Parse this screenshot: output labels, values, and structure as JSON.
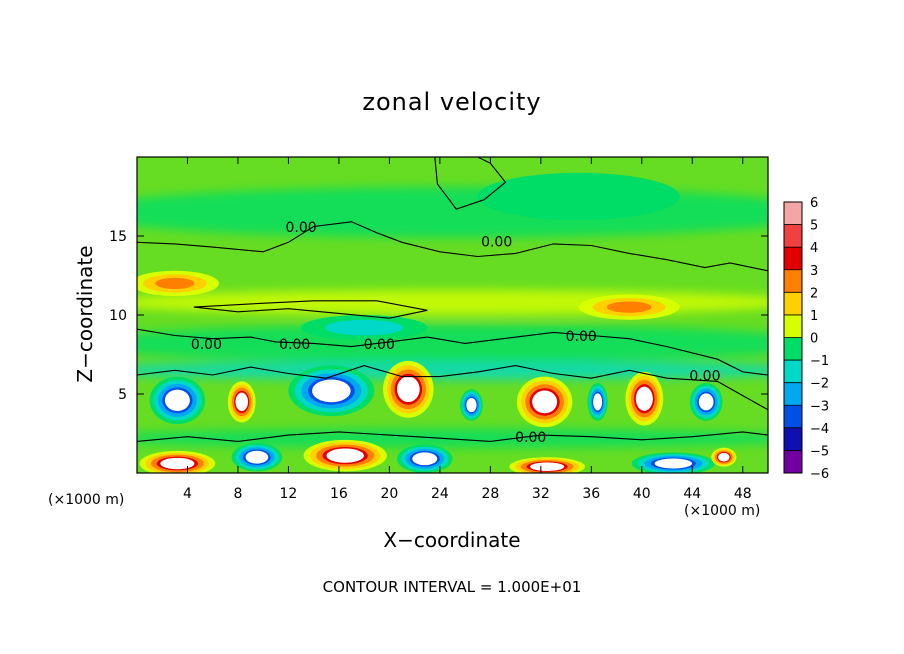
{
  "chart_data": {
    "type": "heatmap",
    "title": "zonal velocity",
    "xlabel": "X−coordinate",
    "ylabel": "Z−coordinate",
    "x_unit_left": "(×1000 m)",
    "x_unit_right": "(×1000 m)",
    "footnote": "CONTOUR INTERVAL = 1.000E+01",
    "xlim": [
      0,
      50
    ],
    "ylim": [
      0,
      20
    ],
    "xticks": [
      4,
      8,
      12,
      16,
      20,
      24,
      28,
      32,
      36,
      40,
      44,
      48
    ],
    "yticks": [
      5,
      10,
      15
    ],
    "colorbar": {
      "ticks": [
        "6",
        "5",
        "4",
        "3",
        "2",
        "1",
        "0",
        "−1",
        "−2",
        "−3",
        "−4",
        "−5",
        "−6"
      ],
      "colors": [
        "#f4a6a6",
        "#f04040",
        "#e00000",
        "#ff8000",
        "#ffd000",
        "#d8ff00",
        "#66dd22",
        "#00dd66",
        "#00d8c8",
        "#00a8f0",
        "#0050e8",
        "#1010b0",
        "#7000a0"
      ]
    },
    "contour_labels": [
      {
        "text": "0.00",
        "x": 13,
        "z": 15.5
      },
      {
        "text": "0.00",
        "x": 28.5,
        "z": 14.6
      },
      {
        "text": "0.00",
        "x": 5.5,
        "z": 8.1
      },
      {
        "text": "0.00",
        "x": 12.5,
        "z": 8.1
      },
      {
        "text": "0.00",
        "x": 19.2,
        "z": 8.1
      },
      {
        "text": "0.00",
        "x": 35.2,
        "z": 8.6
      },
      {
        "text": "0.00",
        "x": 45,
        "z": 6.1
      },
      {
        "text": "0.00",
        "x": 31.2,
        "z": 2.2
      }
    ],
    "features": [
      {
        "sign": "neg",
        "x": 3.2,
        "z": 4.6,
        "rx": 2.2,
        "rz": 1.5
      },
      {
        "sign": "pos",
        "x": 8.3,
        "z": 4.5,
        "rx": 1.1,
        "rz": 1.3
      },
      {
        "sign": "neg",
        "x": 15.4,
        "z": 5.2,
        "rx": 3.4,
        "rz": 1.6
      },
      {
        "sign": "pos",
        "x": 21.5,
        "z": 5.3,
        "rx": 2.0,
        "rz": 1.8
      },
      {
        "sign": "neg",
        "x": 26.5,
        "z": 4.3,
        "rx": 0.9,
        "rz": 1.0
      },
      {
        "sign": "pos",
        "x": 32.3,
        "z": 4.5,
        "rx": 2.2,
        "rz": 1.6
      },
      {
        "sign": "neg",
        "x": 36.5,
        "z": 4.5,
        "rx": 0.8,
        "rz": 1.2
      },
      {
        "sign": "pos",
        "x": 40.2,
        "z": 4.7,
        "rx": 1.5,
        "rz": 1.7
      },
      {
        "sign": "neg",
        "x": 45.1,
        "z": 4.5,
        "rx": 1.3,
        "rz": 1.2
      },
      {
        "sign": "pos",
        "x": 3.2,
        "z": 0.6,
        "rx": 3.0,
        "rz": 0.8
      },
      {
        "sign": "neg",
        "x": 9.5,
        "z": 1.0,
        "rx": 2.0,
        "rz": 0.9
      },
      {
        "sign": "pos",
        "x": 16.5,
        "z": 1.1,
        "rx": 3.3,
        "rz": 1.0
      },
      {
        "sign": "neg",
        "x": 22.8,
        "z": 0.9,
        "rx": 2.2,
        "rz": 0.9
      },
      {
        "sign": "pos",
        "x": 32.5,
        "z": 0.4,
        "rx": 3.0,
        "rz": 0.6
      },
      {
        "sign": "neg",
        "x": 42.5,
        "z": 0.6,
        "rx": 3.3,
        "rz": 0.7
      },
      {
        "sign": "pos",
        "x": 46.5,
        "z": 1.0,
        "rx": 1.0,
        "rz": 0.6
      },
      {
        "sign": "pos",
        "x": 3.0,
        "z": 12.0,
        "rx": 3.5,
        "rz": 0.8,
        "level": 3
      },
      {
        "sign": "pos",
        "x": 39.0,
        "z": 10.5,
        "rx": 4.0,
        "rz": 0.8,
        "level": 3
      },
      {
        "sign": "neg",
        "x": 18.0,
        "z": 9.2,
        "rx": 5.0,
        "rz": 0.8,
        "level": 2
      },
      {
        "sign": "neg",
        "x": 35.0,
        "z": 17.5,
        "rx": 8.0,
        "rz": 1.5,
        "level": 1
      }
    ]
  }
}
